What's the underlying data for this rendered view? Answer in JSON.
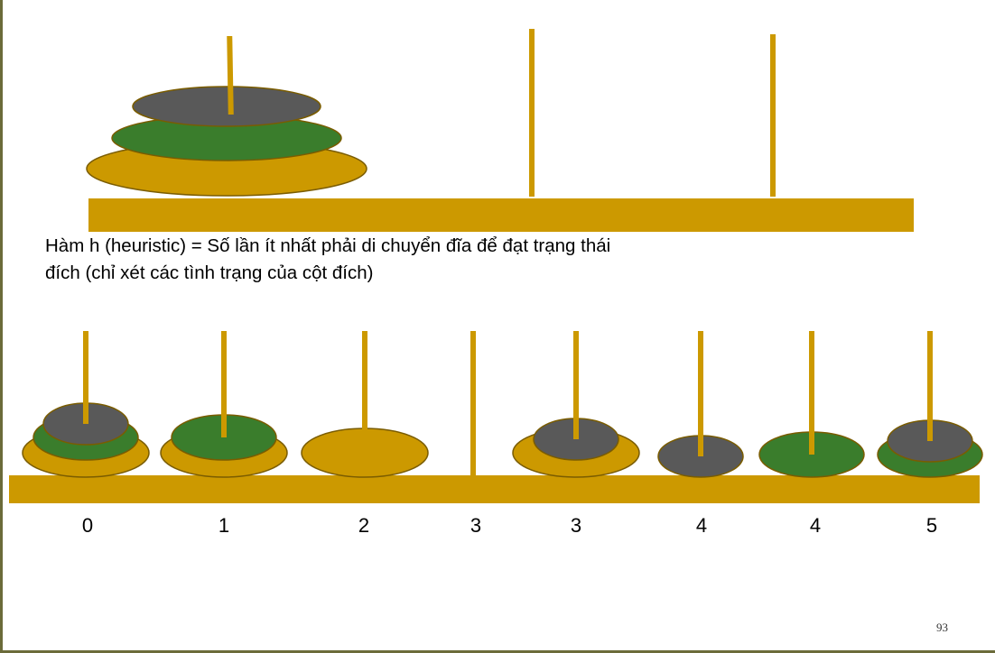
{
  "colors": {
    "gold": "#cc9900",
    "green": "#3a7d2c",
    "gray": "#595959",
    "outline": "#7a5c00"
  },
  "caption": {
    "line1": "Hàm h (heuristic) = Số lần ít nhất phải di chuyển đĩa để đạt trạng thái",
    "line2": "đích (chỉ xét các tình trạng của cột đích)"
  },
  "states": [
    {
      "disks": [
        "large",
        "medium",
        "small"
      ],
      "h": "0"
    },
    {
      "disks": [
        "large",
        "medium"
      ],
      "h": "1"
    },
    {
      "disks": [
        "large"
      ],
      "h": "2"
    },
    {
      "disks": [],
      "h": "3"
    },
    {
      "disks": [
        "large",
        "small"
      ],
      "h": "3"
    },
    {
      "disks": [
        "small"
      ],
      "h": "4"
    },
    {
      "disks": [
        "medium"
      ],
      "h": "4"
    },
    {
      "disks": [
        "medium",
        "small"
      ],
      "h": "5"
    }
  ],
  "page_number": "93"
}
